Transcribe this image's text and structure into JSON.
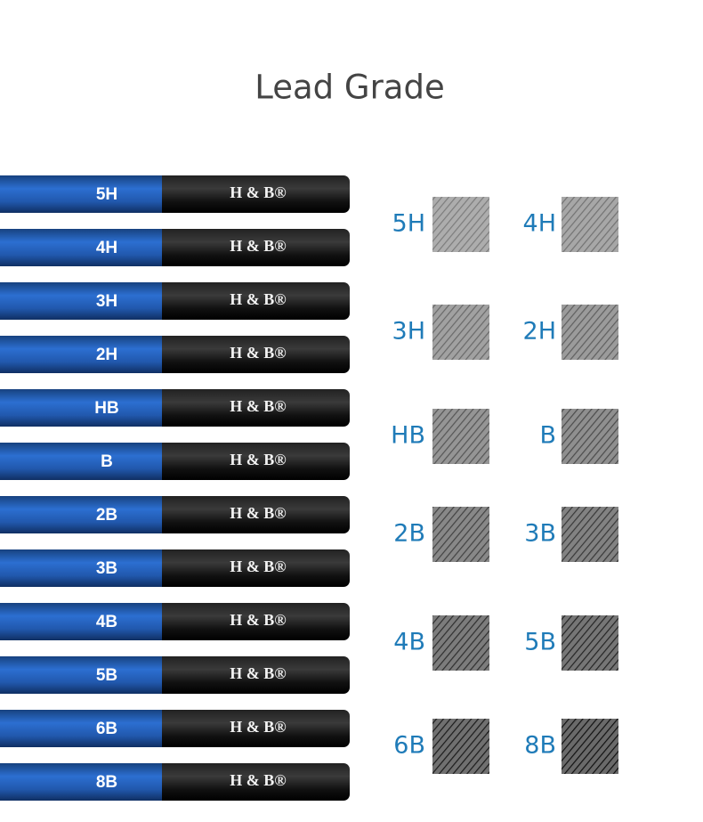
{
  "title": "Lead Grade",
  "pencils": [
    {
      "grade": "5H",
      "brand": "H & B®"
    },
    {
      "grade": "4H",
      "brand": "H & B®"
    },
    {
      "grade": "3H",
      "brand": "H & B®"
    },
    {
      "grade": "2H",
      "brand": "H & B®"
    },
    {
      "grade": "HB",
      "brand": "H & B®"
    },
    {
      "grade": "B",
      "brand": "H & B®"
    },
    {
      "grade": "2B",
      "brand": "H & B®"
    },
    {
      "grade": "3B",
      "brand": "H & B®"
    },
    {
      "grade": "4B",
      "brand": "H & B®"
    },
    {
      "grade": "5B",
      "brand": "H & B®"
    },
    {
      "grade": "6B",
      "brand": "H & B®"
    },
    {
      "grade": "8B",
      "brand": "H & B®"
    }
  ],
  "swatches": [
    "5H",
    "4H",
    "3H",
    "2H",
    "HB",
    "B",
    "2B",
    "3B",
    "4B",
    "5B",
    "6B",
    "8B"
  ]
}
